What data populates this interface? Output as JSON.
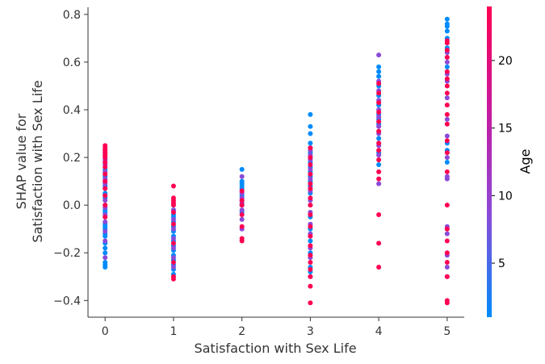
{
  "chart_data": {
    "type": "scatter",
    "xlabel": "Satisfaction with Sex Life",
    "ylabel_lines": [
      "SHAP value for",
      "Satisfaction with Sex Life"
    ],
    "x_ticks": [
      0,
      1,
      2,
      3,
      4,
      5
    ],
    "y_ticks": [
      -0.4,
      -0.2,
      0.0,
      0.2,
      0.4,
      0.6,
      0.8
    ],
    "y_tick_labels": [
      "−0.4",
      "−0.2",
      "0.0",
      "0.2",
      "0.4",
      "0.6",
      "0.8"
    ],
    "xlim": [
      -0.25,
      5.25
    ],
    "ylim": [
      -0.47,
      0.83
    ],
    "colorbar": {
      "label": "Age",
      "ticks": [
        5,
        10,
        15,
        20
      ],
      "range": [
        1,
        24
      ],
      "colors": [
        "#008bfb",
        "#8a4ad8",
        "#c61aa0",
        "#ff0052"
      ]
    },
    "grid": false,
    "legend": "colorbar-right",
    "series": [
      {
        "x": 0,
        "age_group": "young",
        "y": [
          -0.26,
          -0.25,
          -0.24,
          -0.2,
          -0.18,
          -0.16,
          -0.13,
          -0.12,
          -0.1,
          -0.09,
          -0.08,
          -0.05,
          -0.03,
          -0.02,
          0.0,
          0.03,
          0.05,
          0.08,
          0.1,
          0.12,
          0.15,
          0.18,
          0.2,
          0.22
        ]
      },
      {
        "x": 0,
        "age_group": "mid",
        "y": [
          -0.22,
          -0.15,
          -0.11,
          -0.07,
          -0.04,
          -0.01,
          0.02,
          0.04,
          0.07,
          0.09,
          0.11,
          0.14,
          0.17,
          0.19,
          0.21,
          0.23
        ]
      },
      {
        "x": 0,
        "age_group": "old",
        "y": [
          -0.05,
          0.0,
          0.04,
          0.07,
          0.1,
          0.13,
          0.16,
          0.18,
          0.2,
          0.21,
          0.22,
          0.23,
          0.24,
          0.25
        ]
      },
      {
        "x": 1,
        "age_group": "young",
        "y": [
          -0.29,
          -0.27,
          -0.25,
          -0.23,
          -0.21,
          -0.19,
          -0.17,
          -0.15,
          -0.13,
          -0.11,
          -0.09,
          -0.07,
          -0.05,
          -0.04,
          -0.02
        ]
      },
      {
        "x": 1,
        "age_group": "mid",
        "y": [
          -0.26,
          -0.22,
          -0.18,
          -0.14,
          -0.1,
          -0.06,
          -0.02
        ]
      },
      {
        "x": 1,
        "age_group": "old",
        "y": [
          -0.31,
          -0.3,
          -0.24,
          -0.16,
          -0.08,
          -0.03,
          0.0,
          0.01,
          0.02,
          0.03,
          0.08
        ]
      },
      {
        "x": 2,
        "age_group": "young",
        "y": [
          -0.03,
          0.0,
          0.02,
          0.04,
          0.06,
          0.07,
          0.08,
          0.09,
          0.1,
          0.15
        ]
      },
      {
        "x": 2,
        "age_group": "mid",
        "y": [
          -0.1,
          -0.06,
          -0.02,
          0.01,
          0.03,
          0.05,
          0.12
        ]
      },
      {
        "x": 2,
        "age_group": "old",
        "y": [
          -0.15,
          -0.14,
          -0.09,
          -0.04,
          0.0,
          0.02,
          0.06
        ]
      },
      {
        "x": 3,
        "age_group": "young",
        "y": [
          -0.3,
          -0.28,
          -0.26,
          -0.2,
          -0.15,
          -0.1,
          -0.05,
          0.0,
          0.05,
          0.08,
          0.1,
          0.12,
          0.14,
          0.16,
          0.18,
          0.2,
          0.22,
          0.24,
          0.26,
          0.3,
          0.33,
          0.38
        ]
      },
      {
        "x": 3,
        "age_group": "mid",
        "y": [
          -0.22,
          -0.18,
          -0.12,
          -0.08,
          -0.03,
          0.02,
          0.06,
          0.11,
          0.15,
          0.19,
          0.21,
          0.23
        ]
      },
      {
        "x": 3,
        "age_group": "old",
        "y": [
          -0.41,
          -0.34,
          -0.3,
          -0.27,
          -0.24,
          -0.21,
          -0.17,
          -0.13,
          -0.09,
          -0.04,
          0.0,
          0.03,
          0.07,
          0.09,
          0.13,
          0.17,
          0.2,
          0.24
        ]
      },
      {
        "x": 4,
        "age_group": "young",
        "y": [
          0.17,
          0.22,
          0.28,
          0.34,
          0.36,
          0.38,
          0.42,
          0.46,
          0.5,
          0.54,
          0.56,
          0.58
        ]
      },
      {
        "x": 4,
        "age_group": "mid",
        "y": [
          0.09,
          0.21,
          0.25,
          0.3,
          0.33,
          0.37,
          0.4,
          0.44,
          0.48,
          0.52,
          0.63
        ]
      },
      {
        "x": 4,
        "age_group": "old",
        "y": [
          -0.26,
          -0.16,
          -0.04,
          0.11,
          0.14,
          0.19,
          0.23,
          0.26,
          0.31,
          0.35,
          0.39,
          0.43,
          0.47,
          0.51
        ]
      },
      {
        "x": 5,
        "age_group": "young",
        "y": [
          0.18,
          0.23,
          0.26,
          0.58,
          0.62,
          0.66,
          0.7,
          0.73,
          0.75,
          0.76,
          0.78
        ]
      },
      {
        "x": 5,
        "age_group": "mid",
        "y": [
          -0.3,
          -0.26,
          -0.21,
          -0.12,
          -0.09,
          0.11,
          0.12,
          0.2,
          0.29,
          0.36,
          0.45,
          0.52,
          0.55,
          0.6,
          0.64
        ]
      },
      {
        "x": 5,
        "age_group": "old",
        "y": [
          -0.41,
          -0.4,
          -0.3,
          -0.24,
          -0.2,
          -0.15,
          -0.1,
          0.0,
          0.14,
          0.22,
          0.27,
          0.34,
          0.38,
          0.42,
          0.47,
          0.5,
          0.53,
          0.56,
          0.62,
          0.65,
          0.68,
          0.69
        ]
      }
    ]
  }
}
